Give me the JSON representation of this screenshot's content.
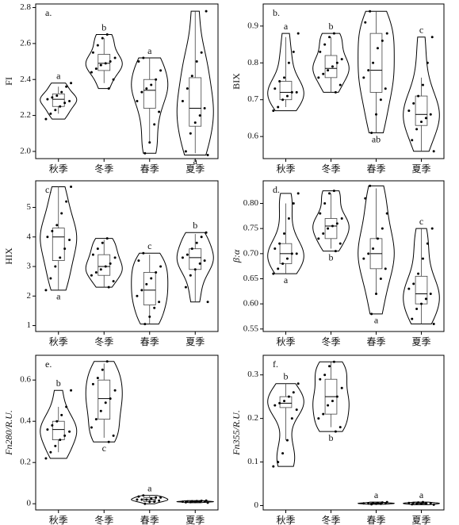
{
  "chart_data": [
    {
      "type": "violin",
      "panel_label": "a.",
      "ylabel": "FI",
      "categories": [
        "秋季",
        "冬季",
        "春季",
        "夏季"
      ],
      "ylim": [
        1.96,
        2.82
      ],
      "yticks": [
        {
          "value": 2,
          "label": "2.0"
        },
        2.2,
        2.4,
        2.6,
        2.8
      ],
      "groups": [
        {
          "points": [
            2.18,
            2.21,
            2.23,
            2.25,
            2.27,
            2.28,
            2.29,
            2.3,
            2.31,
            2.33,
            2.36,
            2.38
          ],
          "box": [
            2.21,
            2.25,
            2.29,
            2.32,
            2.36
          ],
          "letter": "a"
        },
        {
          "points": [
            2.35,
            2.4,
            2.44,
            2.46,
            2.48,
            2.49,
            2.5,
            2.52,
            2.55,
            2.59,
            2.63,
            2.65
          ],
          "box": [
            2.38,
            2.45,
            2.49,
            2.54,
            2.63
          ],
          "letter": "b"
        },
        {
          "points": [
            1.99,
            2.05,
            2.15,
            2.22,
            2.28,
            2.33,
            2.35,
            2.37,
            2.4,
            2.45,
            2.5,
            2.52
          ],
          "box": [
            2.05,
            2.24,
            2.34,
            2.4,
            2.52
          ],
          "letter": "a"
        },
        {
          "points": [
            1.98,
            2.0,
            2.1,
            2.16,
            2.2,
            2.24,
            2.28,
            2.35,
            2.42,
            2.5,
            2.55,
            2.78
          ],
          "box": [
            1.99,
            2.14,
            2.24,
            2.41,
            2.78
          ],
          "letter": "a"
        }
      ]
    },
    {
      "type": "violin",
      "panel_label": "b.",
      "ylabel": "BIX",
      "categories": [
        "秋季",
        "冬季",
        "春季",
        "夏季"
      ],
      "ylim": [
        0.54,
        0.96
      ],
      "yticks": [
        0.6,
        0.7,
        0.8,
        0.9
      ],
      "groups": [
        {
          "points": [
            0.67,
            0.68,
            0.7,
            0.71,
            0.72,
            0.72,
            0.73,
            0.75,
            0.76,
            0.8,
            0.83,
            0.88
          ],
          "box": [
            0.68,
            0.7,
            0.72,
            0.75,
            0.87
          ],
          "letter": "a"
        },
        {
          "points": [
            0.72,
            0.74,
            0.76,
            0.77,
            0.78,
            0.79,
            0.8,
            0.81,
            0.83,
            0.85,
            0.87,
            0.88
          ],
          "box": [
            0.72,
            0.76,
            0.785,
            0.82,
            0.87
          ],
          "letter": "b"
        },
        {
          "points": [
            0.61,
            0.66,
            0.7,
            0.73,
            0.76,
            0.78,
            0.8,
            0.84,
            0.86,
            0.88,
            0.91,
            0.94
          ],
          "box": [
            0.61,
            0.72,
            0.78,
            0.88,
            0.94
          ],
          "letter": "ab"
        },
        {
          "points": [
            0.56,
            0.59,
            0.62,
            0.64,
            0.65,
            0.66,
            0.67,
            0.69,
            0.71,
            0.74,
            0.8,
            0.87
          ],
          "box": [
            0.56,
            0.63,
            0.66,
            0.71,
            0.76
          ],
          "letter": "c"
        }
      ]
    },
    {
      "type": "violin",
      "panel_label": "c.",
      "ylabel": "HIX",
      "categories": [
        "秋季",
        "冬季",
        "春季",
        "夏季"
      ],
      "ylim": [
        0.8,
        5.9
      ],
      "yticks": [
        1,
        2,
        3,
        4,
        5
      ],
      "groups": [
        {
          "points": [
            2.2,
            2.6,
            3.0,
            3.3,
            3.6,
            3.9,
            4.0,
            4.2,
            4.4,
            4.8,
            5.2,
            5.7
          ],
          "box": [
            2.2,
            3.2,
            4.0,
            4.3,
            5.7
          ],
          "letter": "a"
        },
        {
          "points": [
            2.3,
            2.5,
            2.7,
            2.8,
            2.9,
            3.0,
            3.1,
            3.3,
            3.4,
            3.6,
            3.8,
            3.95
          ],
          "box": [
            2.3,
            2.7,
            3.0,
            3.4,
            3.9
          ],
          "letter": null
        },
        {
          "points": [
            1.05,
            1.3,
            1.6,
            1.8,
            2.0,
            2.2,
            2.4,
            2.6,
            2.8,
            3.0,
            3.2,
            3.45
          ],
          "box": [
            1.05,
            1.7,
            2.2,
            2.8,
            3.4
          ],
          "letter": "c"
        },
        {
          "points": [
            1.8,
            2.3,
            2.7,
            2.9,
            3.1,
            3.2,
            3.3,
            3.4,
            3.6,
            3.8,
            4.0,
            4.15
          ],
          "box": [
            1.8,
            2.9,
            3.3,
            3.6,
            4.1
          ],
          "letter": "b"
        }
      ]
    },
    {
      "type": "violin",
      "panel_label": "d.",
      "ylabel": "β:α",
      "categories": [
        "秋季",
        "冬季",
        "春季",
        "夏季"
      ],
      "ylim": [
        0.545,
        0.845
      ],
      "yticks": [
        0.55,
        {
          "value": 0.6,
          "label": "0.60"
        },
        0.65,
        {
          "value": 0.7,
          "label": "0.70"
        },
        0.75,
        {
          "value": 0.8,
          "label": "0.80"
        }
      ],
      "groups": [
        {
          "points": [
            0.66,
            0.67,
            0.68,
            0.69,
            0.7,
            0.7,
            0.71,
            0.72,
            0.74,
            0.77,
            0.8,
            0.82
          ],
          "box": [
            0.66,
            0.68,
            0.7,
            0.72,
            0.8
          ],
          "letter": "a"
        },
        {
          "points": [
            0.705,
            0.72,
            0.73,
            0.74,
            0.75,
            0.755,
            0.76,
            0.77,
            0.78,
            0.8,
            0.82,
            0.825
          ],
          "box": [
            0.71,
            0.73,
            0.755,
            0.77,
            0.82
          ],
          "letter": "b"
        },
        {
          "points": [
            0.58,
            0.62,
            0.65,
            0.67,
            0.69,
            0.7,
            0.71,
            0.73,
            0.75,
            0.78,
            0.81,
            0.835
          ],
          "box": [
            0.62,
            0.67,
            0.7,
            0.73,
            0.83
          ],
          "letter": "a"
        },
        {
          "points": [
            0.56,
            0.57,
            0.59,
            0.6,
            0.61,
            0.62,
            0.63,
            0.64,
            0.66,
            0.69,
            0.72,
            0.75
          ],
          "box": [
            0.56,
            0.6,
            0.62,
            0.655,
            0.75
          ],
          "letter": "c"
        }
      ]
    },
    {
      "type": "violin",
      "panel_label": "e.",
      "ylabel": "Fn280/R.U.",
      "categories": [
        "秋季",
        "冬季",
        "春季",
        "夏季"
      ],
      "ylim": [
        -0.03,
        0.72
      ],
      "yticks": [
        0,
        0.2,
        0.4,
        0.6
      ],
      "groups": [
        {
          "points": [
            0.22,
            0.25,
            0.28,
            0.31,
            0.33,
            0.35,
            0.36,
            0.38,
            0.4,
            0.43,
            0.47,
            0.55
          ],
          "box": [
            0.25,
            0.31,
            0.36,
            0.4,
            0.47
          ],
          "letter": "b"
        },
        {
          "points": [
            0.3,
            0.33,
            0.37,
            0.41,
            0.45,
            0.49,
            0.51,
            0.55,
            0.58,
            0.61,
            0.65,
            0.69
          ],
          "box": [
            0.32,
            0.41,
            0.51,
            0.6,
            0.68
          ],
          "letter": "c"
        },
        {
          "points": [
            0.0,
            0.01,
            0.01,
            0.015,
            0.02,
            0.02,
            0.02,
            0.025,
            0.03,
            0.03,
            0.035,
            0.04
          ],
          "box": [
            0.0,
            0.01,
            0.02,
            0.03,
            0.04
          ],
          "letter": "a"
        },
        {
          "points": [
            0.005,
            0.007,
            0.008,
            0.009,
            0.01,
            0.01,
            0.01,
            0.011,
            0.012,
            0.013,
            0.014,
            0.015
          ],
          "box": [
            0.005,
            0.008,
            0.01,
            0.012,
            0.015
          ],
          "letter": null
        }
      ]
    },
    {
      "type": "violin",
      "panel_label": "f.",
      "ylabel": "Fn355/R.U.",
      "categories": [
        "秋季",
        "冬季",
        "春季",
        "夏季"
      ],
      "ylim": [
        -0.01,
        0.345
      ],
      "yticks": [
        0,
        0.1,
        0.2,
        0.3
      ],
      "groups": [
        {
          "points": [
            0.09,
            0.1,
            0.12,
            0.15,
            0.2,
            0.22,
            0.23,
            0.235,
            0.24,
            0.25,
            0.26,
            0.28
          ],
          "box": [
            0.15,
            0.225,
            0.235,
            0.25,
            0.28
          ],
          "letter": "b"
        },
        {
          "points": [
            0.17,
            0.18,
            0.2,
            0.21,
            0.23,
            0.24,
            0.25,
            0.27,
            0.29,
            0.3,
            0.32,
            0.33
          ],
          "box": [
            0.18,
            0.21,
            0.25,
            0.29,
            0.33
          ],
          "letter": "b"
        },
        {
          "points": [
            0.003,
            0.004,
            0.004,
            0.005,
            0.005,
            0.005,
            0.006,
            0.006,
            0.007,
            0.008
          ],
          "box": [
            0.003,
            0.004,
            0.005,
            0.006,
            0.008
          ],
          "letter": "a"
        },
        {
          "points": [
            0.002,
            0.003,
            0.004,
            0.004,
            0.005,
            0.005,
            0.006,
            0.006,
            0.007,
            0.008
          ],
          "box": [
            0.002,
            0.004,
            0.005,
            0.006,
            0.008
          ],
          "letter": "a"
        }
      ]
    }
  ]
}
